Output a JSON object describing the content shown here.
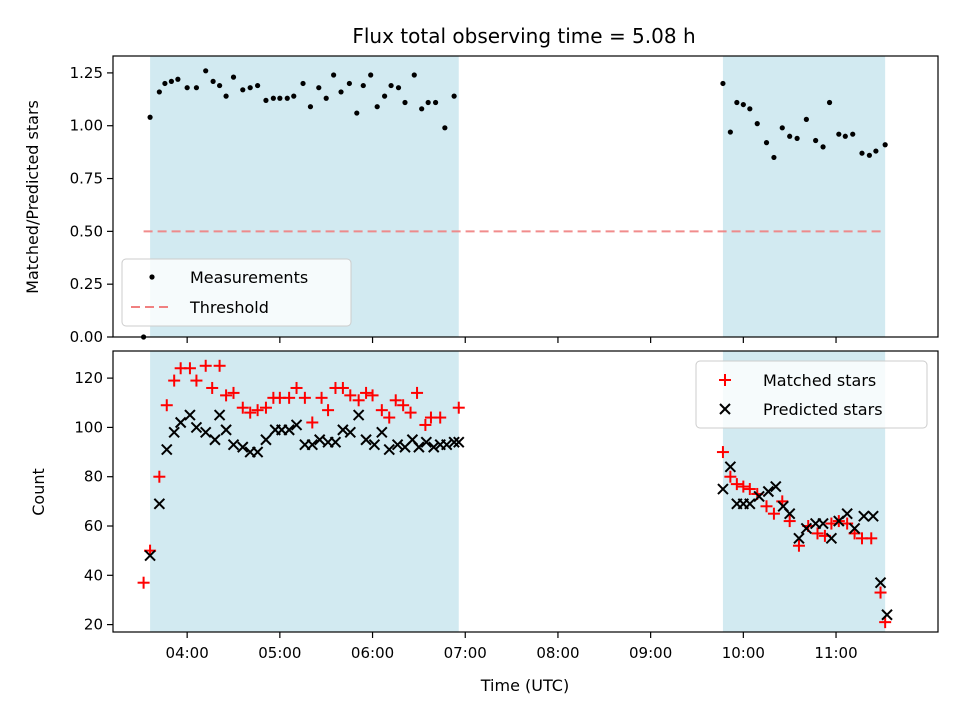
{
  "chart_data": {
    "title": "Flux total observing time = 5.08 h",
    "xlabel": "Time (UTC)",
    "x_ticks": [
      "04:00",
      "05:00",
      "06:00",
      "07:00",
      "08:00",
      "09:00",
      "10:00",
      "11:00"
    ],
    "x_tick_hours": [
      4,
      5,
      6,
      7,
      8,
      9,
      10,
      11
    ],
    "xlim_hours": [
      3.2,
      12.1
    ],
    "shaded_intervals_hours": [
      [
        3.6,
        6.93
      ],
      [
        9.78,
        11.53
      ]
    ],
    "shade_color": "#add8e6",
    "top": {
      "type": "scatter",
      "ylabel": "Matched/Predicted stars",
      "ylim": [
        0,
        1.33
      ],
      "y_ticks": [
        0.0,
        0.25,
        0.5,
        0.75,
        1.0,
        1.25
      ],
      "y_tick_labels": [
        "0.00",
        "0.25",
        "0.50",
        "0.75",
        "1.00",
        "1.25"
      ],
      "threshold": 0.5,
      "threshold_range_hours": [
        3.53,
        11.53
      ],
      "threshold_color": "#f08080",
      "legend": {
        "measurements": "Measurements",
        "threshold": "Threshold"
      },
      "series": [
        {
          "name": "Measurements",
          "color": "#000000",
          "points": [
            [
              3.53,
              0.0
            ],
            [
              3.6,
              1.04
            ],
            [
              3.7,
              1.16
            ],
            [
              3.76,
              1.2
            ],
            [
              3.83,
              1.21
            ],
            [
              3.9,
              1.22
            ],
            [
              4.0,
              1.18
            ],
            [
              4.1,
              1.18
            ],
            [
              4.2,
              1.26
            ],
            [
              4.28,
              1.21
            ],
            [
              4.35,
              1.19
            ],
            [
              4.42,
              1.14
            ],
            [
              4.5,
              1.23
            ],
            [
              4.6,
              1.17
            ],
            [
              4.68,
              1.18
            ],
            [
              4.76,
              1.19
            ],
            [
              4.85,
              1.12
            ],
            [
              4.93,
              1.13
            ],
            [
              5.0,
              1.13
            ],
            [
              5.08,
              1.13
            ],
            [
              5.15,
              1.14
            ],
            [
              5.25,
              1.2
            ],
            [
              5.33,
              1.09
            ],
            [
              5.42,
              1.18
            ],
            [
              5.5,
              1.13
            ],
            [
              5.58,
              1.24
            ],
            [
              5.66,
              1.16
            ],
            [
              5.75,
              1.2
            ],
            [
              5.83,
              1.06
            ],
            [
              5.9,
              1.19
            ],
            [
              5.98,
              1.24
            ],
            [
              6.05,
              1.09
            ],
            [
              6.13,
              1.14
            ],
            [
              6.2,
              1.19
            ],
            [
              6.28,
              1.18
            ],
            [
              6.35,
              1.11
            ],
            [
              6.45,
              1.24
            ],
            [
              6.53,
              1.08
            ],
            [
              6.6,
              1.11
            ],
            [
              6.68,
              1.11
            ],
            [
              6.78,
              0.99
            ],
            [
              6.88,
              1.14
            ],
            [
              9.78,
              1.2
            ],
            [
              9.86,
              0.97
            ],
            [
              9.93,
              1.11
            ],
            [
              10.0,
              1.1
            ],
            [
              10.07,
              1.08
            ],
            [
              10.15,
              1.01
            ],
            [
              10.25,
              0.92
            ],
            [
              10.33,
              0.85
            ],
            [
              10.42,
              0.99
            ],
            [
              10.5,
              0.95
            ],
            [
              10.58,
              0.94
            ],
            [
              10.68,
              1.03
            ],
            [
              10.78,
              0.93
            ],
            [
              10.86,
              0.9
            ],
            [
              10.93,
              1.11
            ],
            [
              11.03,
              0.96
            ],
            [
              11.1,
              0.95
            ],
            [
              11.18,
              0.96
            ],
            [
              11.28,
              0.87
            ],
            [
              11.36,
              0.86
            ],
            [
              11.43,
              0.88
            ],
            [
              11.53,
              0.91
            ]
          ]
        }
      ]
    },
    "bottom": {
      "type": "scatter",
      "ylabel": "Count",
      "ylim": [
        17,
        131
      ],
      "y_ticks": [
        20,
        40,
        60,
        80,
        100,
        120
      ],
      "legend": {
        "matched": "Matched stars",
        "predicted": "Predicted stars"
      },
      "series": [
        {
          "name": "Matched stars",
          "marker": "plus",
          "color": "#ff0000",
          "points": [
            [
              3.53,
              37
            ],
            [
              3.6,
              50
            ],
            [
              3.7,
              80
            ],
            [
              3.78,
              109
            ],
            [
              3.86,
              119
            ],
            [
              3.93,
              124
            ],
            [
              4.03,
              124
            ],
            [
              4.1,
              119
            ],
            [
              4.2,
              125
            ],
            [
              4.27,
              116
            ],
            [
              4.35,
              125
            ],
            [
              4.42,
              113
            ],
            [
              4.5,
              114
            ],
            [
              4.6,
              108
            ],
            [
              4.68,
              106
            ],
            [
              4.76,
              107
            ],
            [
              4.85,
              108
            ],
            [
              4.93,
              112
            ],
            [
              5.0,
              112
            ],
            [
              5.1,
              112
            ],
            [
              5.18,
              116
            ],
            [
              5.27,
              112
            ],
            [
              5.35,
              102
            ],
            [
              5.45,
              112
            ],
            [
              5.52,
              107
            ],
            [
              5.6,
              116
            ],
            [
              5.68,
              116
            ],
            [
              5.76,
              113
            ],
            [
              5.85,
              111
            ],
            [
              5.93,
              114
            ],
            [
              6.0,
              113
            ],
            [
              6.1,
              107
            ],
            [
              6.18,
              104
            ],
            [
              6.25,
              111
            ],
            [
              6.33,
              109
            ],
            [
              6.41,
              106
            ],
            [
              6.48,
              114
            ],
            [
              6.57,
              101
            ],
            [
              6.63,
              104
            ],
            [
              6.73,
              104
            ],
            [
              6.93,
              108
            ],
            [
              9.78,
              90
            ],
            [
              9.86,
              80
            ],
            [
              9.93,
              77
            ],
            [
              10.0,
              76
            ],
            [
              10.07,
              75
            ],
            [
              10.15,
              73
            ],
            [
              10.25,
              68
            ],
            [
              10.33,
              65
            ],
            [
              10.42,
              70
            ],
            [
              10.5,
              62
            ],
            [
              10.6,
              52
            ],
            [
              10.7,
              60
            ],
            [
              10.8,
              57
            ],
            [
              10.88,
              56
            ],
            [
              10.95,
              61
            ],
            [
              11.03,
              62
            ],
            [
              11.12,
              61
            ],
            [
              11.2,
              57
            ],
            [
              11.28,
              55
            ],
            [
              11.38,
              55
            ],
            [
              11.48,
              33
            ],
            [
              11.53,
              21
            ]
          ]
        },
        {
          "name": "Predicted stars",
          "marker": "x",
          "color": "#000000",
          "points": [
            [
              3.6,
              48
            ],
            [
              3.7,
              69
            ],
            [
              3.78,
              91
            ],
            [
              3.86,
              98
            ],
            [
              3.93,
              102
            ],
            [
              4.03,
              105
            ],
            [
              4.1,
              100
            ],
            [
              4.2,
              98
            ],
            [
              4.3,
              95
            ],
            [
              4.35,
              105
            ],
            [
              4.42,
              99
            ],
            [
              4.5,
              93
            ],
            [
              4.6,
              92
            ],
            [
              4.68,
              90
            ],
            [
              4.76,
              90
            ],
            [
              4.85,
              95
            ],
            [
              4.95,
              99
            ],
            [
              5.02,
              99
            ],
            [
              5.1,
              99
            ],
            [
              5.18,
              101
            ],
            [
              5.27,
              93
            ],
            [
              5.35,
              93
            ],
            [
              5.43,
              95
            ],
            [
              5.52,
              94
            ],
            [
              5.6,
              94
            ],
            [
              5.68,
              99
            ],
            [
              5.76,
              98
            ],
            [
              5.85,
              105
            ],
            [
              5.93,
              95
            ],
            [
              6.02,
              93
            ],
            [
              6.1,
              98
            ],
            [
              6.18,
              91
            ],
            [
              6.27,
              93
            ],
            [
              6.35,
              92
            ],
            [
              6.43,
              95
            ],
            [
              6.5,
              92
            ],
            [
              6.58,
              94
            ],
            [
              6.66,
              92
            ],
            [
              6.73,
              93
            ],
            [
              6.8,
              93
            ],
            [
              6.88,
              94
            ],
            [
              6.93,
              94
            ],
            [
              9.78,
              75
            ],
            [
              9.86,
              84
            ],
            [
              9.93,
              69
            ],
            [
              10.0,
              69
            ],
            [
              10.07,
              69
            ],
            [
              10.17,
              72
            ],
            [
              10.27,
              74
            ],
            [
              10.35,
              76
            ],
            [
              10.43,
              68
            ],
            [
              10.5,
              65
            ],
            [
              10.6,
              55
            ],
            [
              10.68,
              59
            ],
            [
              10.78,
              61
            ],
            [
              10.86,
              61
            ],
            [
              10.95,
              55
            ],
            [
              11.03,
              62
            ],
            [
              11.12,
              65
            ],
            [
              11.2,
              59
            ],
            [
              11.3,
              64
            ],
            [
              11.4,
              64
            ],
            [
              11.48,
              37
            ],
            [
              11.55,
              24
            ]
          ]
        }
      ]
    }
  }
}
